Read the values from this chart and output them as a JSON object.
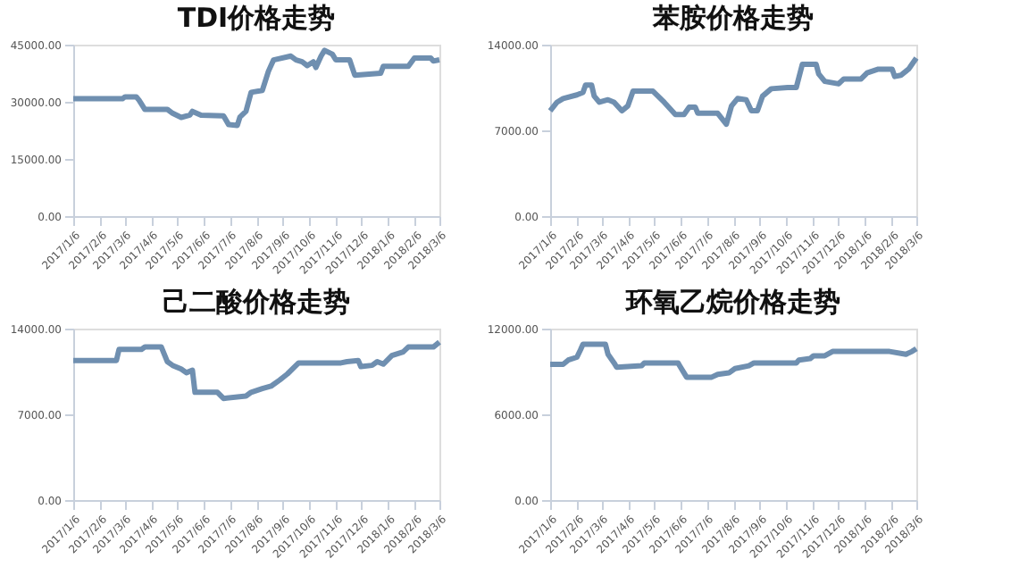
{
  "chart_data": [
    {
      "type": "line",
      "title": "TDI价格走势",
      "x": [
        "2017-01-06",
        "2017-03-04",
        "2017-03-07",
        "2017-03-20",
        "2017-03-23",
        "2017-03-30",
        "2017-04-25",
        "2017-05-01",
        "2017-05-11",
        "2017-05-21",
        "2017-05-24",
        "2017-06-03",
        "2017-06-29",
        "2017-07-05",
        "2017-07-15",
        "2017-07-18",
        "2017-07-25",
        "2017-07-31",
        "2017-08-13",
        "2017-08-20",
        "2017-08-26",
        "2017-09-15",
        "2017-09-21",
        "2017-09-28",
        "2017-10-04",
        "2017-10-11",
        "2017-10-14",
        "2017-10-20",
        "2017-10-24",
        "2017-11-02",
        "2017-11-06",
        "2017-11-22",
        "2017-11-28",
        "2017-12-28",
        "2017-12-31",
        "2018-01-29",
        "2018-02-05",
        "2018-02-24",
        "2018-02-27",
        "2018-03-06"
      ],
      "series": [
        {
          "color": "#6f8fb0",
          "values": [
            30800,
            30800,
            31300,
            31300,
            30500,
            28000,
            28000,
            27000,
            25900,
            26500,
            27500,
            26500,
            26300,
            24000,
            23800,
            26000,
            27500,
            32500,
            33000,
            38000,
            41000,
            42000,
            41000,
            40500,
            39500,
            40500,
            39000,
            42000,
            43500,
            42500,
            41000,
            41000,
            37000,
            37500,
            39300,
            39300,
            41500,
            41500,
            40700,
            41000
          ]
        }
      ],
      "xlim": [
        "2017-01-06",
        "2018-03-06"
      ],
      "xticks": [
        {
          "value": "2017-01-06",
          "label": "2017/1/6"
        },
        {
          "value": "2017-02-06",
          "label": "2017/2/6"
        },
        {
          "value": "2017-03-06",
          "label": "2017/3/6"
        },
        {
          "value": "2017-04-06",
          "label": "2017/4/6"
        },
        {
          "value": "2017-05-06",
          "label": "2017/5/6"
        },
        {
          "value": "2017-06-06",
          "label": "2017/6/6"
        },
        {
          "value": "2017-07-06",
          "label": "2017/7/6"
        },
        {
          "value": "2017-08-06",
          "label": "2017/8/6"
        },
        {
          "value": "2017-09-06",
          "label": "2017/9/6"
        },
        {
          "value": "2017-10-06",
          "label": "2017/10/6"
        },
        {
          "value": "2017-11-06",
          "label": "2017/11/6"
        },
        {
          "value": "2017-12-06",
          "label": "2017/12/6"
        },
        {
          "value": "2018-01-06",
          "label": "2018/1/6"
        },
        {
          "value": "2018-02-06",
          "label": "2018/2/6"
        },
        {
          "value": "2018-03-06",
          "label": "2018/3/6"
        }
      ],
      "ylim": [
        0,
        45000
      ],
      "yticks": [
        {
          "value": 0,
          "label": "0.00"
        },
        {
          "value": 15000,
          "label": "15000.00"
        },
        {
          "value": 30000,
          "label": "30000.00"
        },
        {
          "value": 45000,
          "label": "45000.00"
        }
      ]
    },
    {
      "type": "line",
      "title": "苯胺价格走势",
      "x": [
        "2017-01-06",
        "2017-01-14",
        "2017-01-21",
        "2017-02-06",
        "2017-02-13",
        "2017-02-16",
        "2017-02-23",
        "2017-02-26",
        "2017-03-04",
        "2017-03-14",
        "2017-03-21",
        "2017-03-30",
        "2017-04-06",
        "2017-04-12",
        "2017-05-05",
        "2017-05-18",
        "2017-05-31",
        "2017-06-10",
        "2017-06-16",
        "2017-06-23",
        "2017-06-26",
        "2017-07-19",
        "2017-07-29",
        "2017-08-04",
        "2017-08-11",
        "2017-08-21",
        "2017-08-27",
        "2017-09-03",
        "2017-09-09",
        "2017-09-19",
        "2017-10-08",
        "2017-10-18",
        "2017-10-25",
        "2017-11-10",
        "2017-11-13",
        "2017-11-20",
        "2017-12-06",
        "2017-12-12",
        "2018-01-01",
        "2018-01-08",
        "2018-01-21",
        "2018-02-06",
        "2018-02-09",
        "2018-02-16",
        "2018-02-25",
        "2018-03-06"
      ],
      "series": [
        {
          "color": "#6f8fb0",
          "values": [
            8600,
            9300,
            9600,
            9900,
            10100,
            10700,
            10700,
            9800,
            9300,
            9500,
            9300,
            8600,
            9000,
            10200,
            10200,
            9300,
            8300,
            8300,
            8900,
            8900,
            8400,
            8400,
            7500,
            9000,
            9600,
            9500,
            8600,
            8600,
            9800,
            10400,
            10500,
            10500,
            12400,
            12400,
            11600,
            11000,
            10800,
            11200,
            11200,
            11700,
            12000,
            12000,
            11400,
            11500,
            12000,
            12900
          ]
        }
      ],
      "xlim": [
        "2017-01-06",
        "2018-03-06"
      ],
      "xticks": [
        {
          "value": "2017-01-06",
          "label": "2017/1/6"
        },
        {
          "value": "2017-02-06",
          "label": "2017/2/6"
        },
        {
          "value": "2017-03-06",
          "label": "2017/3/6"
        },
        {
          "value": "2017-04-06",
          "label": "2017/4/6"
        },
        {
          "value": "2017-05-06",
          "label": "2017/5/6"
        },
        {
          "value": "2017-06-06",
          "label": "2017/6/6"
        },
        {
          "value": "2017-07-06",
          "label": "2017/7/6"
        },
        {
          "value": "2017-08-06",
          "label": "2017/8/6"
        },
        {
          "value": "2017-09-06",
          "label": "2017/9/6"
        },
        {
          "value": "2017-10-06",
          "label": "2017/10/6"
        },
        {
          "value": "2017-11-06",
          "label": "2017/11/6"
        },
        {
          "value": "2017-12-06",
          "label": "2017/12/6"
        },
        {
          "value": "2018-01-06",
          "label": "2018/1/6"
        },
        {
          "value": "2018-02-06",
          "label": "2018/2/6"
        },
        {
          "value": "2018-03-06",
          "label": "2018/3/6"
        }
      ],
      "ylim": [
        0,
        14000
      ],
      "yticks": [
        {
          "value": 0,
          "label": "0.00"
        },
        {
          "value": 7000,
          "label": "7000.00"
        },
        {
          "value": 14000,
          "label": "14000.00"
        }
      ]
    },
    {
      "type": "line",
      "title": "己二酸价格走势",
      "x": [
        "2017-01-06",
        "2017-02-25",
        "2017-02-28",
        "2017-03-26",
        "2017-03-30",
        "2017-04-18",
        "2017-04-25",
        "2017-05-01",
        "2017-05-11",
        "2017-05-17",
        "2017-05-24",
        "2017-05-27",
        "2017-06-22",
        "2017-06-29",
        "2017-07-25",
        "2017-07-31",
        "2017-08-13",
        "2017-08-23",
        "2017-09-02",
        "2017-09-11",
        "2017-09-24",
        "2017-11-12",
        "2017-11-19",
        "2017-12-02",
        "2017-12-05",
        "2017-12-18",
        "2017-12-24",
        "2017-12-31",
        "2018-01-10",
        "2018-01-23",
        "2018-01-29",
        "2018-02-27",
        "2018-03-06"
      ],
      "series": [
        {
          "color": "#6f8fb0",
          "values": [
            11400,
            11400,
            12300,
            12300,
            12500,
            12500,
            11300,
            11000,
            10700,
            10400,
            10600,
            8800,
            8800,
            8300,
            8500,
            8800,
            9100,
            9300,
            9800,
            10300,
            11200,
            11200,
            11300,
            11400,
            10900,
            11000,
            11300,
            11100,
            11800,
            12100,
            12500,
            12500,
            12900
          ]
        }
      ],
      "xlim": [
        "2017-01-06",
        "2018-03-06"
      ],
      "xticks": [
        {
          "value": "2017-01-06",
          "label": "2017/1/6"
        },
        {
          "value": "2017-02-06",
          "label": "2017/2/6"
        },
        {
          "value": "2017-03-06",
          "label": "2017/3/6"
        },
        {
          "value": "2017-04-06",
          "label": "2017/4/6"
        },
        {
          "value": "2017-05-06",
          "label": "2017/5/6"
        },
        {
          "value": "2017-06-06",
          "label": "2017/6/6"
        },
        {
          "value": "2017-07-06",
          "label": "2017/7/6"
        },
        {
          "value": "2017-08-06",
          "label": "2017/8/6"
        },
        {
          "value": "2017-09-06",
          "label": "2017/9/6"
        },
        {
          "value": "2017-10-06",
          "label": "2017/10/6"
        },
        {
          "value": "2017-11-06",
          "label": "2017/11/6"
        },
        {
          "value": "2017-12-06",
          "label": "2017/12/6"
        },
        {
          "value": "2018-01-06",
          "label": "2018/1/6"
        },
        {
          "value": "2018-02-06",
          "label": "2018/2/6"
        },
        {
          "value": "2018-03-06",
          "label": "2018/3/6"
        }
      ],
      "ylim": [
        0,
        14000
      ],
      "yticks": [
        {
          "value": 0,
          "label": "0.00"
        },
        {
          "value": 7000,
          "label": "7000.00"
        },
        {
          "value": 14000,
          "label": "14000.00"
        }
      ]
    },
    {
      "type": "line",
      "title": "环氧乙烷价格走势",
      "x": [
        "2017-01-06",
        "2017-01-21",
        "2017-01-27",
        "2017-02-06",
        "2017-02-10",
        "2017-02-13",
        "2017-03-11",
        "2017-03-14",
        "2017-03-21",
        "2017-03-24",
        "2017-04-22",
        "2017-04-25",
        "2017-06-03",
        "2017-06-10",
        "2017-06-13",
        "2017-07-12",
        "2017-07-19",
        "2017-08-01",
        "2017-08-08",
        "2017-08-24",
        "2017-08-30",
        "2017-10-18",
        "2017-10-21",
        "2017-11-03",
        "2017-11-07",
        "2017-11-20",
        "2017-11-29",
        "2018-02-03",
        "2018-02-22",
        "2018-03-01",
        "2018-03-06"
      ],
      "series": [
        {
          "color": "#6f8fb0",
          "values": [
            9500,
            9500,
            9800,
            10000,
            10500,
            10900,
            10900,
            10200,
            9600,
            9300,
            9400,
            9600,
            9600,
            8900,
            8600,
            8600,
            8800,
            8900,
            9200,
            9400,
            9600,
            9600,
            9800,
            9900,
            10100,
            10100,
            10400,
            10400,
            10200,
            10400,
            10600
          ]
        }
      ],
      "xlim": [
        "2017-01-06",
        "2018-03-06"
      ],
      "xticks": [
        {
          "value": "2017-01-06",
          "label": "2017/1/6"
        },
        {
          "value": "2017-02-06",
          "label": "2017/2/6"
        },
        {
          "value": "2017-03-06",
          "label": "2017/3/6"
        },
        {
          "value": "2017-04-06",
          "label": "2017/4/6"
        },
        {
          "value": "2017-05-06",
          "label": "2017/5/6"
        },
        {
          "value": "2017-06-06",
          "label": "2017/6/6"
        },
        {
          "value": "2017-07-06",
          "label": "2017/7/6"
        },
        {
          "value": "2017-08-06",
          "label": "2017/8/6"
        },
        {
          "value": "2017-09-06",
          "label": "2017/9/6"
        },
        {
          "value": "2017-10-06",
          "label": "2017/10/6"
        },
        {
          "value": "2017-11-06",
          "label": "2017/11/6"
        },
        {
          "value": "2017-12-06",
          "label": "2017/12/6"
        },
        {
          "value": "2018-01-06",
          "label": "2018/1/6"
        },
        {
          "value": "2018-02-06",
          "label": "2018/2/6"
        },
        {
          "value": "2018-03-06",
          "label": "2018/3/6"
        }
      ],
      "ylim": [
        0,
        12000
      ],
      "yticks": [
        {
          "value": 0,
          "label": "0.00"
        },
        {
          "value": 6000,
          "label": "6000.00"
        },
        {
          "value": 12000,
          "label": "12000.00"
        }
      ]
    }
  ]
}
